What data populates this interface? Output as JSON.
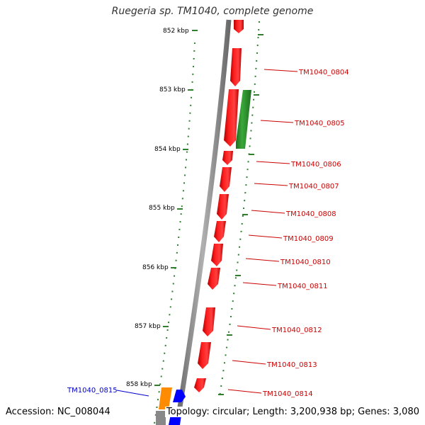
{
  "title": "Ruegeria sp. TM1040, complete genome",
  "footer": {
    "accession": "Accession: NC_008044",
    "info": "Topology: circular; Length: 3,200,938 bp; Genes: 3,080"
  },
  "colors": {
    "forward_gene": "#ff0000",
    "reverse_gene_green": "#2e8b2e",
    "orange_gene": "#ff8c00",
    "blue_gene": "#0000ff",
    "backbone": "#808080",
    "tick": "#2f7f2f",
    "forward_label": "#cc0000",
    "highlight_label": "#0000cc"
  },
  "ticks": [
    "852 kbp",
    "853 kbp",
    "854 kbp",
    "855 kbp",
    "856 kbp",
    "857 kbp",
    "858 kbp"
  ],
  "gene_labels": [
    {
      "id": "TM1040_0804",
      "color": "#cc0000"
    },
    {
      "id": "TM1040_0805",
      "color": "#cc0000"
    },
    {
      "id": "TM1040_0806",
      "color": "#cc0000"
    },
    {
      "id": "TM1040_0807",
      "color": "#cc0000"
    },
    {
      "id": "TM1040_0808",
      "color": "#cc0000"
    },
    {
      "id": "TM1040_0809",
      "color": "#cc0000"
    },
    {
      "id": "TM1040_0810",
      "color": "#cc0000"
    },
    {
      "id": "TM1040_0811",
      "color": "#cc0000"
    },
    {
      "id": "TM1040_0812",
      "color": "#cc0000"
    },
    {
      "id": "TM1040_0813",
      "color": "#cc0000"
    },
    {
      "id": "TM1040_0814",
      "color": "#cc0000"
    },
    {
      "id": "TM1040_0815",
      "color": "#0000cc"
    }
  ]
}
